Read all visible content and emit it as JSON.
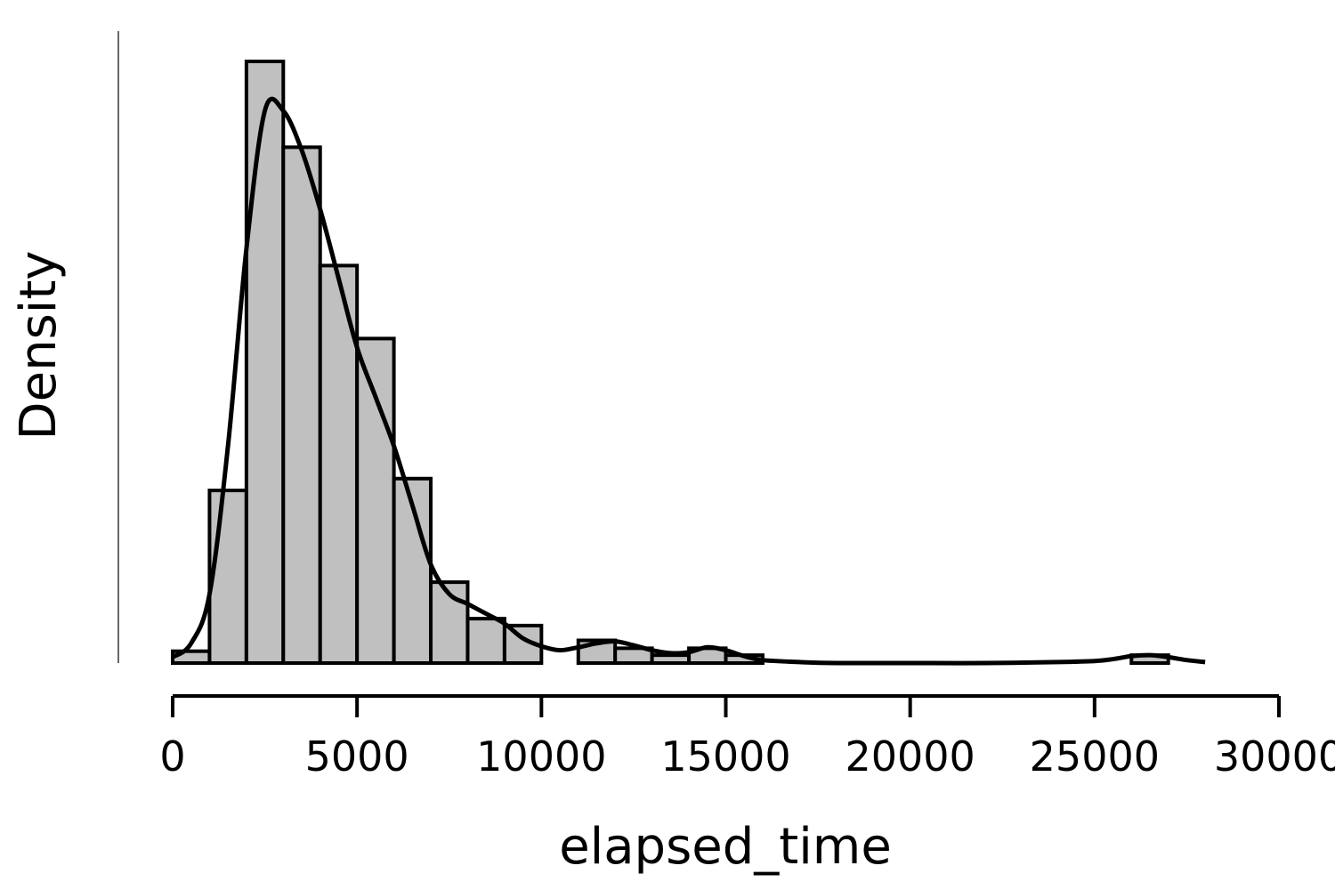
{
  "chart_data": {
    "type": "bar",
    "title": "",
    "xlabel": "elapsed_time",
    "ylabel": "Density",
    "xlim": [
      0,
      30000
    ],
    "x_ticks": [
      "0",
      "5000",
      "10000",
      "15000",
      "20000",
      "25000",
      "30000"
    ],
    "x_tick_values": [
      0,
      5000,
      10000,
      15000,
      20000,
      25000,
      30000
    ],
    "y_tick_labels_shown": false,
    "grid": false,
    "legend": "none",
    "bin_width": 1000,
    "bins": [
      {
        "start": 0,
        "end": 1000,
        "density": 1.2e-06
      },
      {
        "start": 1000,
        "end": 2000,
        "density": 1.75e-05
      },
      {
        "start": 2000,
        "end": 3000,
        "density": 6.1e-05
      },
      {
        "start": 3000,
        "end": 4000,
        "density": 5.23e-05
      },
      {
        "start": 4000,
        "end": 5000,
        "density": 4.03e-05
      },
      {
        "start": 5000,
        "end": 6000,
        "density": 3.29e-05
      },
      {
        "start": 6000,
        "end": 7000,
        "density": 1.87e-05
      },
      {
        "start": 7000,
        "end": 8000,
        "density": 8.2e-06
      },
      {
        "start": 8000,
        "end": 9000,
        "density": 4.5e-06
      },
      {
        "start": 9000,
        "end": 10000,
        "density": 3.8e-06
      },
      {
        "start": 10000,
        "end": 11000,
        "density": 0.0
      },
      {
        "start": 11000,
        "end": 12000,
        "density": 2.3e-06
      },
      {
        "start": 12000,
        "end": 13000,
        "density": 1.5e-06
      },
      {
        "start": 13000,
        "end": 14000,
        "density": 8e-07
      },
      {
        "start": 14000,
        "end": 15000,
        "density": 1.5e-06
      },
      {
        "start": 15000,
        "end": 16000,
        "density": 8e-07
      },
      {
        "start": 26000,
        "end": 27000,
        "density": 8e-07
      }
    ],
    "density_curve": {
      "x": [
        0,
        500,
        1000,
        1500,
        2000,
        2500,
        3000,
        3500,
        4000,
        4500,
        5000,
        5500,
        6000,
        6500,
        7000,
        7500,
        8000,
        8500,
        9000,
        9500,
        10000,
        10500,
        11000,
        11500,
        12000,
        12500,
        13000,
        13500,
        14000,
        14500,
        15000,
        15500,
        16000,
        17000,
        18000,
        20000,
        22000,
        24000,
        25000,
        25500,
        26000,
        26500,
        27000,
        27500,
        28000
      ],
      "y": [
        6e-07,
        2e-06,
        7e-06,
        2.2e-05,
        4.2e-05,
        5.6e-05,
        5.6e-05,
        5.2e-05,
        4.6e-05,
        3.9e-05,
        3.2e-05,
        2.7e-05,
        2.2e-05,
        1.6e-05,
        1e-05,
        7e-06,
        6e-06,
        5e-06,
        4e-06,
        2.5e-06,
        1.7e-06,
        1.3e-06,
        1.6e-06,
        2e-06,
        2.2e-06,
        1.8e-06,
        1.3e-06,
        1e-06,
        1.1e-06,
        1.6e-06,
        1.3e-06,
        7e-07,
        3e-07,
        1e-07,
        0.0,
        0.0,
        0.0,
        1e-07,
        2e-07,
        4e-07,
        7e-07,
        8e-07,
        6e-07,
        3e-07,
        1e-07
      ]
    },
    "colors": {
      "bar_fill": "#c0c0c0",
      "bar_stroke": "#000000",
      "curve": "#000000",
      "axis": "#000000"
    }
  }
}
